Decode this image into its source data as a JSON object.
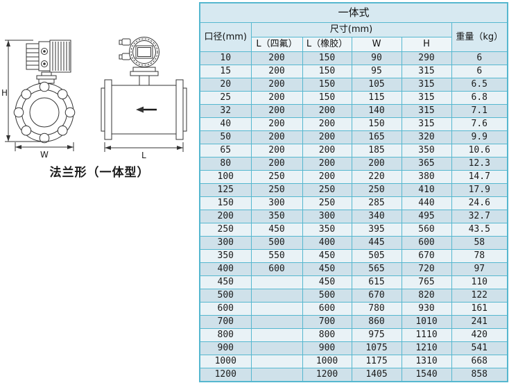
{
  "diagram": {
    "caption": "法兰形（一体型）",
    "labels": {
      "height": "H",
      "width": "W",
      "length": "L"
    }
  },
  "table": {
    "title": "一体式",
    "headers": {
      "diameter": "口径(mm)",
      "size_group": "尺寸(mm)",
      "l_ptfe": "L（四氟）",
      "l_rubber": "L（橡胶）",
      "w": "W",
      "h": "H",
      "weight": "重量（kg）"
    },
    "rows": [
      [
        "10",
        "200",
        "150",
        "90",
        "290",
        "6"
      ],
      [
        "15",
        "200",
        "150",
        "95",
        "315",
        "6"
      ],
      [
        "20",
        "200",
        "150",
        "105",
        "315",
        "6.5"
      ],
      [
        "25",
        "200",
        "150",
        "115",
        "315",
        "6.8"
      ],
      [
        "32",
        "200",
        "200",
        "140",
        "315",
        "7.1"
      ],
      [
        "40",
        "200",
        "200",
        "150",
        "315",
        "7.6"
      ],
      [
        "50",
        "200",
        "200",
        "165",
        "320",
        "9.9"
      ],
      [
        "65",
        "200",
        "200",
        "185",
        "350",
        "10.6"
      ],
      [
        "80",
        "200",
        "200",
        "200",
        "365",
        "12.3"
      ],
      [
        "100",
        "250",
        "200",
        "220",
        "380",
        "14.7"
      ],
      [
        "125",
        "250",
        "250",
        "250",
        "410",
        "17.9"
      ],
      [
        "150",
        "300",
        "250",
        "285",
        "440",
        "24.6"
      ],
      [
        "200",
        "350",
        "300",
        "340",
        "495",
        "32.7"
      ],
      [
        "250",
        "450",
        "350",
        "395",
        "560",
        "43.5"
      ],
      [
        "300",
        "500",
        "400",
        "445",
        "600",
        "58"
      ],
      [
        "350",
        "550",
        "450",
        "505",
        "670",
        "78"
      ],
      [
        "400",
        "600",
        "450",
        "565",
        "720",
        "97"
      ],
      [
        "450",
        "",
        "450",
        "615",
        "765",
        "110"
      ],
      [
        "500",
        "",
        "500",
        "670",
        "820",
        "122"
      ],
      [
        "600",
        "",
        "600",
        "780",
        "930",
        "161"
      ],
      [
        "700",
        "",
        "700",
        "860",
        "1010",
        "241"
      ],
      [
        "800",
        "",
        "800",
        "975",
        "1110",
        "420"
      ],
      [
        "900",
        "",
        "900",
        "1075",
        "1210",
        "541"
      ],
      [
        "1000",
        "",
        "1000",
        "1175",
        "1310",
        "668"
      ],
      [
        "1200",
        "",
        "1200",
        "1405",
        "1540",
        "858"
      ]
    ]
  },
  "colors": {
    "border": "#55b7cf",
    "header_bg": "#d7e9f1",
    "subheader_bg": "#eef5f8",
    "row_dark": "#cfe1ea",
    "row_light": "#e9f2f6",
    "diagram_line": "#333333"
  }
}
